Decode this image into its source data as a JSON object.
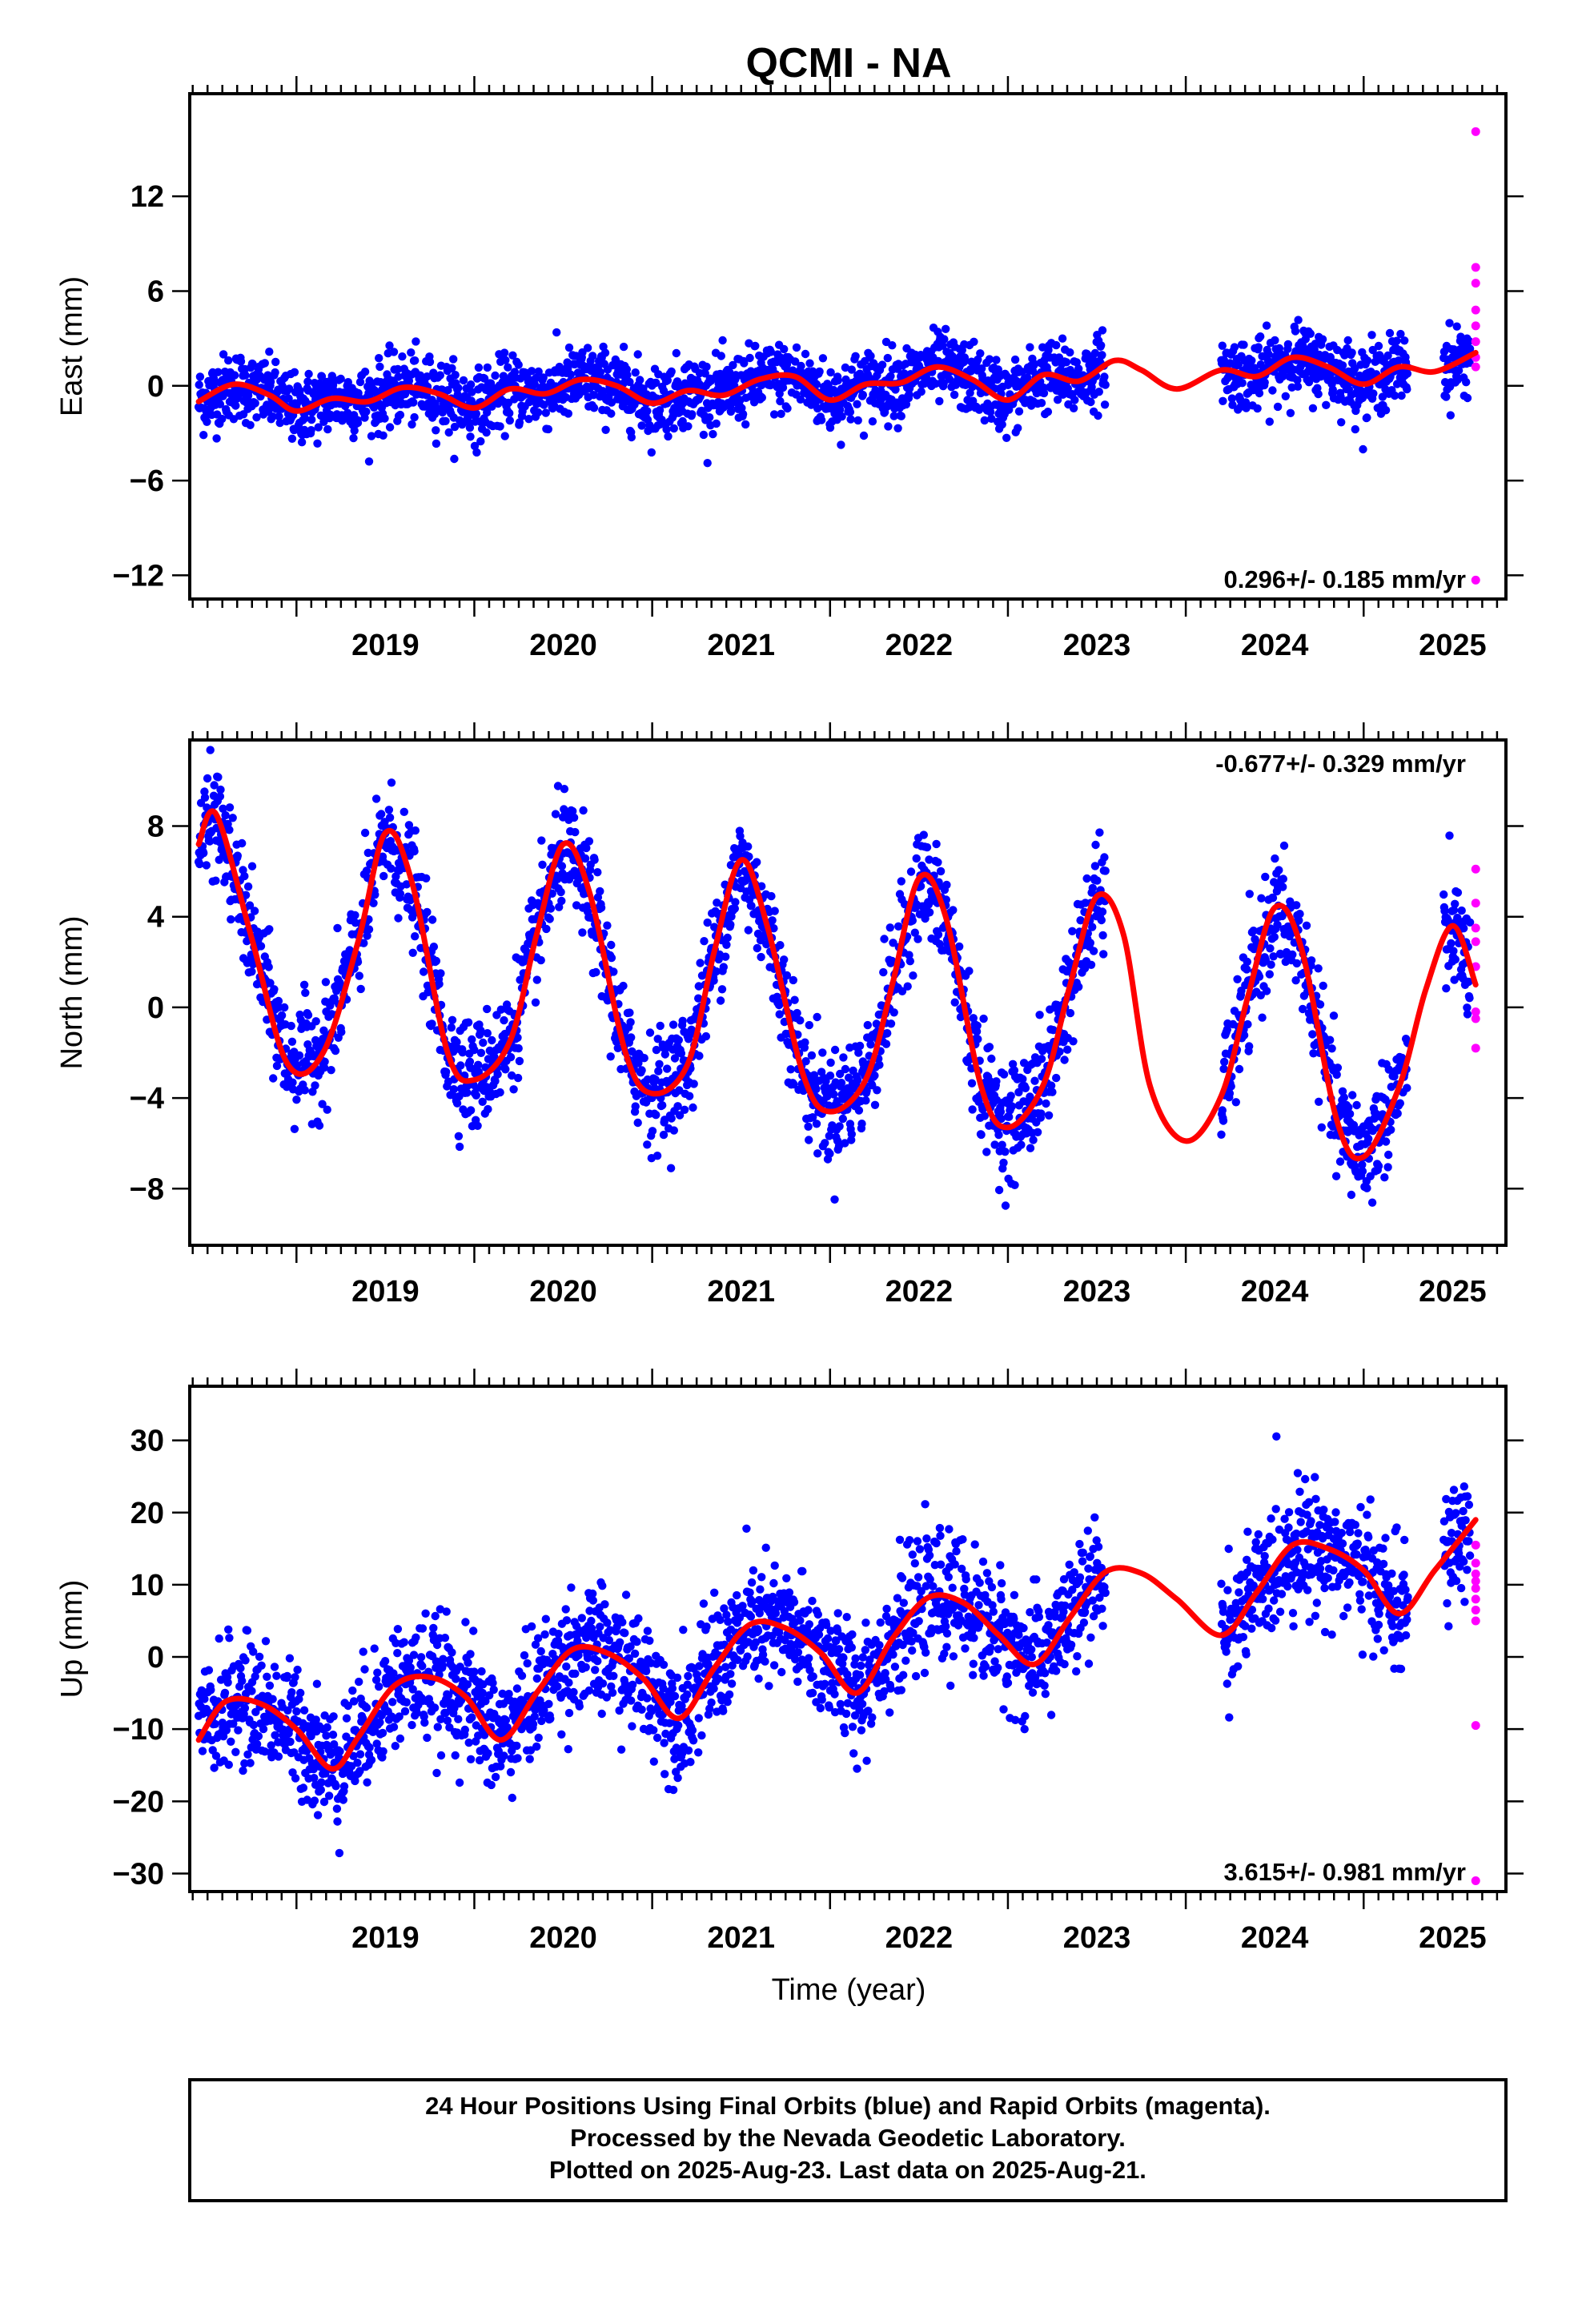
{
  "title": "QCMI - NA",
  "xlabel": "Time (year)",
  "caption": [
    "24 Hour Positions Using Final Orbits (blue) and Rapid Orbits (magenta).",
    "Processed by the Nevada Geodetic Laboratory.",
    "Plotted on 2025-Aug-23. Last data on 2025-Aug-21."
  ],
  "colors": {
    "final": "#0000ff",
    "rapid": "#ff00ff",
    "model": "#ff0000",
    "frame": "#000000"
  },
  "chart_data": [
    {
      "type": "scatter",
      "component": "east",
      "ylabel": "East (mm)",
      "rate_label": "0.296+/- 0.185 mm/yr",
      "rate_position": "bottom-right",
      "xlim": [
        2018.4,
        2025.8
      ],
      "ylim": [
        -13.5,
        18.5
      ],
      "xticks": [
        2019,
        2020,
        2021,
        2022,
        2023,
        2024,
        2025
      ],
      "yticks": [
        -12,
        -6,
        0,
        6,
        12
      ],
      "data_segments": [
        [
          2018.45,
          2023.55
        ],
        [
          2024.2,
          2025.25
        ],
        [
          2025.45,
          2025.6
        ]
      ],
      "final_orbits_sample": {
        "x": [
          2018.5,
          2018.75,
          2019.0,
          2019.25,
          2019.5,
          2019.75,
          2020.0,
          2020.25,
          2020.5,
          2020.75,
          2021.0,
          2021.25,
          2021.5,
          2021.75,
          2022.0,
          2022.25,
          2022.5,
          2022.75,
          2023.0,
          2023.25,
          2023.5,
          2024.3,
          2024.5,
          2024.75,
          2025.0,
          2025.2,
          2025.5
        ],
        "y": [
          -0.3,
          -0.5,
          -1.6,
          -0.8,
          -0.2,
          0.0,
          -1.2,
          -0.5,
          0.2,
          0.6,
          -0.9,
          -0.3,
          0.4,
          0.8,
          -0.7,
          0.2,
          0.4,
          0.9,
          -0.2,
          0.3,
          0.6,
          0.5,
          0.8,
          1.4,
          0.1,
          0.7,
          1.2
        ]
      },
      "rapid_orbits": {
        "x": [
          2025.63,
          2025.63,
          2025.63,
          2025.63,
          2025.63,
          2025.63,
          2025.63,
          2025.63,
          2025.63
        ],
        "y": [
          16.1,
          7.5,
          6.5,
          4.8,
          3.8,
          2.8,
          1.8,
          1.2,
          -12.3
        ]
      },
      "model": {
        "x": [
          2018.45,
          2018.65,
          2018.85,
          2019.0,
          2019.2,
          2019.4,
          2019.6,
          2019.8,
          2020.0,
          2020.2,
          2020.4,
          2020.6,
          2020.8,
          2021.0,
          2021.2,
          2021.4,
          2021.6,
          2021.8,
          2022.0,
          2022.2,
          2022.4,
          2022.6,
          2022.8,
          2023.0,
          2023.2,
          2023.4,
          2023.6,
          2023.75,
          2023.95,
          2024.2,
          2024.4,
          2024.6,
          2024.8,
          2025.0,
          2025.2,
          2025.4,
          2025.63
        ],
        "y": [
          -1.0,
          0.1,
          -0.6,
          -1.6,
          -0.8,
          -1.0,
          -0.1,
          -0.5,
          -1.4,
          -0.2,
          -0.5,
          0.4,
          0.0,
          -1.1,
          -0.3,
          -0.6,
          0.4,
          0.6,
          -0.9,
          0.1,
          0.2,
          1.2,
          0.4,
          -0.9,
          0.7,
          0.3,
          1.6,
          1.0,
          -0.2,
          1.0,
          0.6,
          1.8,
          1.2,
          0.1,
          1.2,
          0.9,
          2.1
        ]
      }
    },
    {
      "type": "scatter",
      "component": "north",
      "ylabel": "North (mm)",
      "rate_label": "-0.677+/- 0.329 mm/yr",
      "rate_position": "top-right",
      "xlim": [
        2018.4,
        2025.8
      ],
      "ylim": [
        -10.5,
        11.8
      ],
      "xticks": [
        2019,
        2020,
        2021,
        2022,
        2023,
        2024,
        2025
      ],
      "yticks": [
        -8,
        -4,
        0,
        4,
        8
      ],
      "data_segments": [
        [
          2018.45,
          2023.55
        ],
        [
          2024.2,
          2025.25
        ],
        [
          2025.45,
          2025.6
        ]
      ],
      "final_orbits_sample": {
        "x": [
          2018.5,
          2018.6,
          2018.9,
          2019.1,
          2019.5,
          2019.6,
          2019.9,
          2020.0,
          2020.5,
          2020.7,
          2021.0,
          2021.5,
          2021.7,
          2022.0,
          2022.1,
          2022.5,
          2022.7,
          2022.9,
          2023.1,
          2023.4,
          2024.3,
          2024.5,
          2024.7,
          2025.0,
          2025.5
        ],
        "y": [
          9.5,
          8.6,
          -2.8,
          -2.5,
          7.0,
          8.6,
          -3.8,
          -6.5,
          7.2,
          4.2,
          -4.5,
          6.8,
          3.6,
          -6.2,
          -7.5,
          8.2,
          2.6,
          -3.0,
          -3.5,
          5.5,
          1.4,
          5.2,
          1.3,
          -4.5,
          3.5
        ]
      },
      "rapid_orbits": {
        "x": [
          2025.63,
          2025.63,
          2025.63,
          2025.63,
          2025.63,
          2025.63,
          2025.63,
          2025.63
        ],
        "y": [
          6.1,
          4.6,
          3.5,
          2.9,
          1.8,
          -0.2,
          -0.5,
          -1.8
        ]
      },
      "model": {
        "x": [
          2018.45,
          2018.55,
          2018.75,
          2018.95,
          2019.15,
          2019.35,
          2019.5,
          2019.65,
          2019.85,
          2020.0,
          2020.2,
          2020.35,
          2020.5,
          2020.65,
          2020.85,
          2021.0,
          2021.2,
          2021.35,
          2021.5,
          2021.65,
          2021.85,
          2022.0,
          2022.2,
          2022.35,
          2022.5,
          2022.65,
          2022.85,
          2023.0,
          2023.2,
          2023.35,
          2023.5,
          2023.65,
          2023.8,
          2024.0,
          2024.2,
          2024.35,
          2024.5,
          2024.65,
          2024.85,
          2025.0,
          2025.2,
          2025.35,
          2025.5,
          2025.63
        ],
        "y": [
          7.2,
          8.5,
          3.0,
          -2.5,
          -2.0,
          3.0,
          7.7,
          5.5,
          -2.0,
          -3.2,
          -1.5,
          3.2,
          7.2,
          5.0,
          -2.0,
          -3.8,
          -2.5,
          2.5,
          6.5,
          3.5,
          -3.0,
          -4.6,
          -3.2,
          1.0,
          5.7,
          4.0,
          -3.5,
          -5.3,
          -3.4,
          1.0,
          4.9,
          3.2,
          -3.5,
          -5.9,
          -3.9,
          0.5,
          4.4,
          2.6,
          -5.0,
          -6.6,
          -3.5,
          0.8,
          3.6,
          1.0
        ]
      }
    },
    {
      "type": "scatter",
      "component": "up",
      "ylabel": "Up (mm)",
      "rate_label": "3.615+/- 0.981 mm/yr",
      "rate_position": "bottom-right",
      "xlim": [
        2018.4,
        2025.8
      ],
      "ylim": [
        -32.5,
        37.5
      ],
      "xticks": [
        2019,
        2020,
        2021,
        2022,
        2023,
        2024,
        2025
      ],
      "yticks": [
        -30,
        -20,
        -10,
        0,
        10,
        20,
        30
      ],
      "data_segments": [
        [
          2018.45,
          2023.55
        ],
        [
          2024.2,
          2025.25
        ],
        [
          2025.45,
          2025.6
        ]
      ],
      "final_orbits_sample": {
        "x": [
          2018.5,
          2018.7,
          2019.0,
          2019.2,
          2019.6,
          2019.8,
          2020.0,
          2020.2,
          2020.6,
          2020.8,
          2021.0,
          2021.2,
          2021.6,
          2021.8,
          2022.0,
          2022.2,
          2022.6,
          2022.8,
          2023.0,
          2023.2,
          2023.4,
          2024.3,
          2024.6,
          2024.8,
          2025.0,
          2025.5
        ],
        "y": [
          -4.0,
          -5.5,
          -10.0,
          -20.0,
          0.0,
          -3.0,
          -10.0,
          -9.0,
          5.0,
          2.0,
          -6.0,
          -10.0,
          8.0,
          4.0,
          -4.0,
          -8.0,
          14.0,
          10.0,
          3.0,
          -3.0,
          2.0,
          6.0,
          14.0,
          16.0,
          9.0,
          14.0
        ]
      },
      "rapid_orbits": {
        "x": [
          2025.63,
          2025.63,
          2025.63,
          2025.63,
          2025.63,
          2025.63,
          2025.63,
          2025.63,
          2025.63,
          2025.63
        ],
        "y": [
          15.5,
          13.0,
          11.5,
          10.5,
          9.5,
          8.0,
          6.5,
          5.0,
          -9.5,
          -31.0
        ]
      },
      "model": {
        "x": [
          2018.45,
          2018.6,
          2018.8,
          2019.0,
          2019.2,
          2019.35,
          2019.55,
          2019.75,
          2019.95,
          2020.15,
          2020.35,
          2020.55,
          2020.75,
          2020.95,
          2021.15,
          2021.35,
          2021.55,
          2021.75,
          2021.95,
          2022.15,
          2022.35,
          2022.55,
          2022.75,
          2022.95,
          2023.15,
          2023.35,
          2023.55,
          2023.75,
          2023.95,
          2024.2,
          2024.4,
          2024.6,
          2024.8,
          2025.0,
          2025.2,
          2025.4,
          2025.63
        ],
        "y": [
          -11.5,
          -6.2,
          -6.5,
          -10.0,
          -15.5,
          -11.0,
          -4.0,
          -2.8,
          -5.5,
          -11.5,
          -5.0,
          1.0,
          0.5,
          -3.0,
          -8.5,
          -1.5,
          4.5,
          4.0,
          0.5,
          -5.0,
          2.5,
          8.2,
          7.5,
          3.0,
          -1.0,
          5.5,
          11.8,
          11.6,
          8.0,
          3.0,
          9.0,
          15.5,
          15.0,
          12.0,
          6.0,
          12.0,
          19.0
        ]
      }
    }
  ]
}
